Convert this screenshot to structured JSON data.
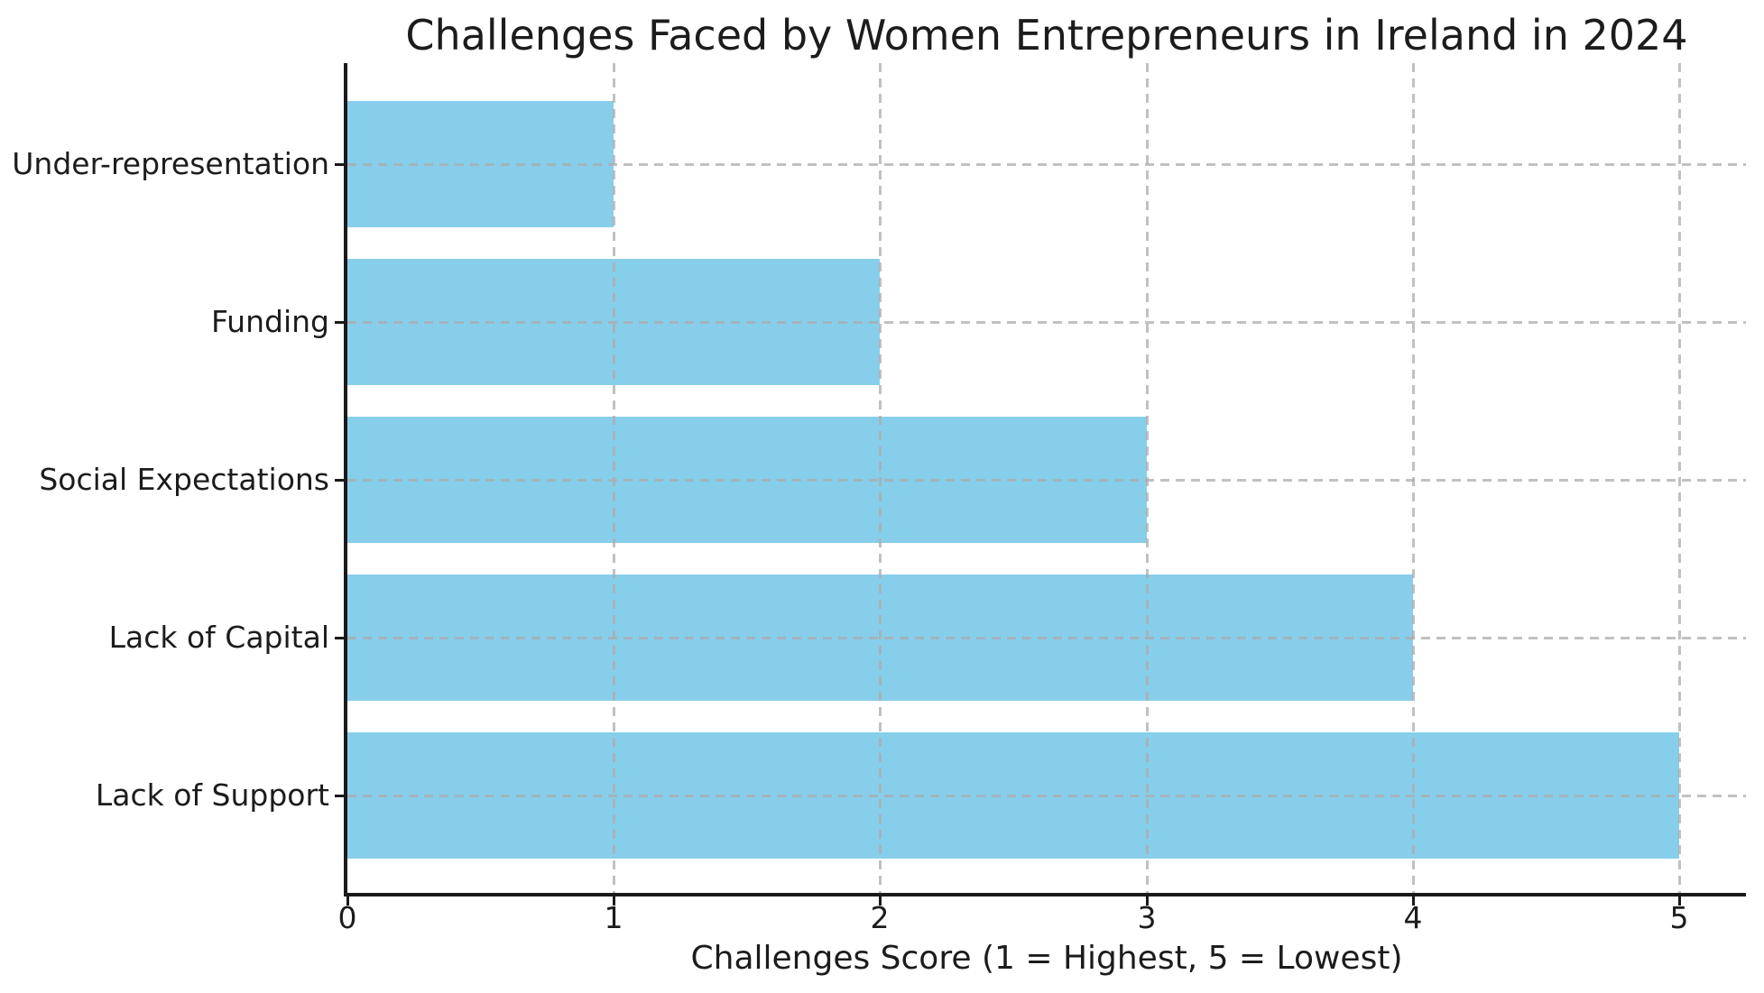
{
  "chart_data": {
    "type": "bar",
    "orientation": "horizontal",
    "title": "Challenges Faced by Women Entrepreneurs in Ireland in 2024",
    "xlabel": "Challenges Score (1 = Highest, 5 = Lowest)",
    "ylabel": "",
    "categories": [
      "Under-representation",
      "Funding",
      "Social Expectations",
      "Lack of Capital",
      "Lack of Support"
    ],
    "values": [
      1,
      2,
      3,
      4,
      5
    ],
    "x_ticks": [
      0,
      1,
      2,
      3,
      4,
      5
    ],
    "x_tick_labels": [
      "0",
      "1",
      "2",
      "3",
      "4",
      "5"
    ],
    "xlim": [
      0,
      5.25
    ],
    "bar_color": "#87CEEB",
    "grid": true,
    "grid_style": "dashed",
    "grid_color": "#acacac",
    "legend": "none",
    "spines": [
      "left",
      "bottom"
    ]
  }
}
